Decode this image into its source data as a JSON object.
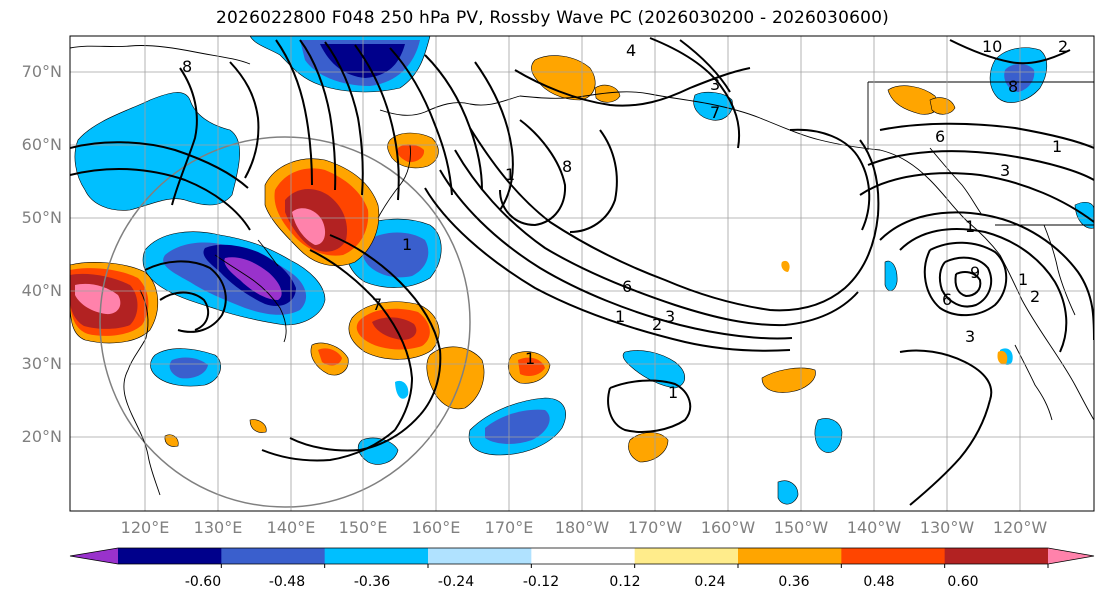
{
  "title": "2026022800 F048 250 hPa PV, Rossby Wave PC (2026030200 - 2026030600)",
  "lat_labels": [
    "70°N",
    "60°N",
    "50°N",
    "40°N",
    "30°N",
    "20°N"
  ],
  "lon_labels": [
    "120°E",
    "130°E",
    "140°E",
    "150°E",
    "160°E",
    "170°E",
    "180°W",
    "170°W",
    "160°W",
    "150°W",
    "140°W",
    "130°W",
    "120°W"
  ],
  "colorbar": {
    "colors": [
      "#9932cc",
      "#00008b",
      "#3a5fcd",
      "#00bfff",
      "#b0e2ff",
      "#ffffff",
      "#ffec8b",
      "#ffa500",
      "#ff4500",
      "#b22222",
      "#ff82ab"
    ],
    "tick_labels": [
      "-0.60",
      "-0.48",
      "-0.36",
      "-0.24",
      "-0.12",
      "0.12",
      "0.24",
      "0.36",
      "0.48",
      "0.60"
    ],
    "tick_values": [
      -0.6,
      -0.48,
      -0.36,
      -0.24,
      -0.12,
      0.12,
      0.24,
      0.36,
      0.48,
      0.6
    ]
  },
  "contour_labels": [
    "8",
    "4",
    "3",
    "10",
    "2",
    "8",
    "1",
    "6",
    "7",
    "3",
    "8",
    "1",
    "1",
    "6",
    "1",
    "2",
    "3",
    "7",
    "1",
    "1",
    "9",
    "6",
    "1",
    "3",
    "2",
    "1"
  ],
  "colors": {
    "purple": "#9932cc",
    "navy": "#00008b",
    "blue": "#3a5fcd",
    "sky": "#00bfff",
    "lightblue": "#b0e2ff",
    "yellow": "#ffec8b",
    "orange": "#ffa500",
    "redorange": "#ff4500",
    "firebrick": "#b22222",
    "pink": "#ff82ab",
    "grid": "#a0a0a0",
    "axis_label": "#808080"
  }
}
